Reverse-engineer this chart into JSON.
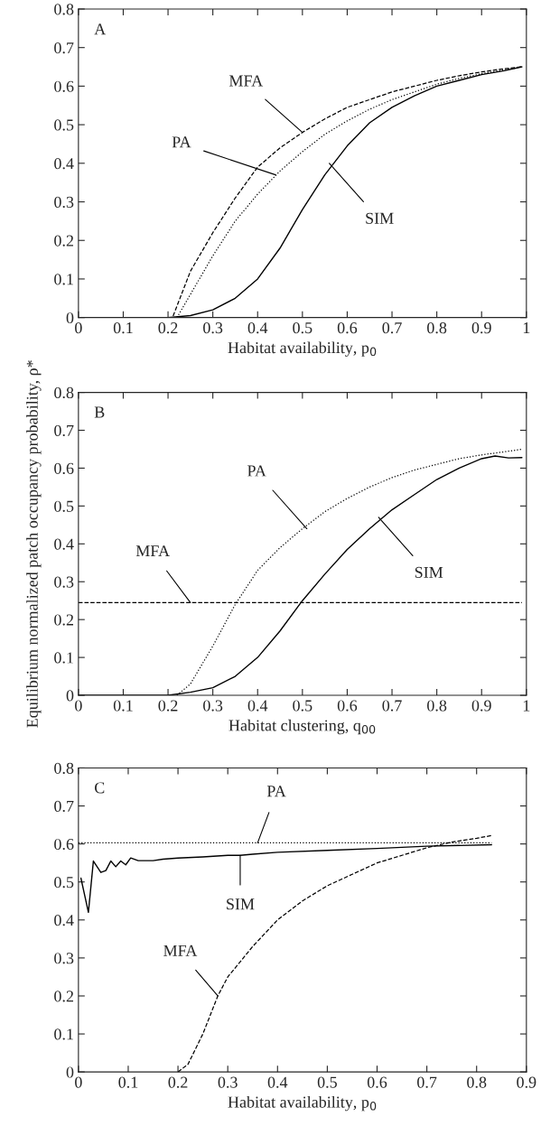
{
  "chart_data": [
    {
      "type": "line",
      "xlabel": "Habitat availability, p$_{0}$",
      "xlim": [
        0,
        1
      ],
      "ylim": [
        0,
        0.8
      ],
      "xticks": [
        0,
        0.1,
        0.2,
        0.3,
        0.4,
        0.5,
        0.6,
        0.7,
        0.8,
        0.9,
        1
      ],
      "yticks": [
        0,
        0.1,
        0.2,
        0.3,
        0.4,
        0.5,
        0.6,
        0.7,
        0.8
      ],
      "grid": false,
      "legend": false,
      "annotations": [
        "A",
        {
          "text": "MFA",
          "x": 0.5,
          "y": 0.48
        },
        {
          "text": "PA",
          "x": 0.44,
          "y": 0.37
        },
        {
          "text": "SIM",
          "x": 0.56,
          "y": 0.4
        }
      ],
      "series": [
        {
          "color": "#000000",
          "line_style": "dashed",
          "x": [
            0,
            0.1,
            0.2,
            0.21,
            0.25,
            0.3,
            0.35,
            0.4,
            0.45,
            0.5,
            0.55,
            0.6,
            0.65,
            0.7,
            0.75,
            0.8,
            0.85,
            0.9,
            0.95,
            0.99
          ],
          "values": [
            0,
            0,
            0,
            0,
            0.12,
            0.22,
            0.31,
            0.39,
            0.44,
            0.48,
            0.515,
            0.545,
            0.565,
            0.585,
            0.6,
            0.615,
            0.627,
            0.637,
            0.645,
            0.65
          ]
        },
        {
          "color": "#000000",
          "line_style": "dotted",
          "x": [
            0.22,
            0.25,
            0.3,
            0.35,
            0.4,
            0.45,
            0.5,
            0.55,
            0.6,
            0.65,
            0.7,
            0.75,
            0.8,
            0.85,
            0.9,
            0.95,
            0.99
          ],
          "values": [
            0,
            0.06,
            0.16,
            0.25,
            0.32,
            0.38,
            0.43,
            0.475,
            0.51,
            0.54,
            0.565,
            0.585,
            0.605,
            0.62,
            0.632,
            0.642,
            0.65
          ]
        },
        {
          "color": "#000000",
          "line_style": "solid",
          "x": [
            0,
            0.1,
            0.2,
            0.25,
            0.3,
            0.35,
            0.4,
            0.45,
            0.5,
            0.55,
            0.6,
            0.65,
            0.7,
            0.75,
            0.8,
            0.85,
            0.9,
            0.95,
            0.99
          ],
          "values": [
            0,
            0,
            0,
            0.005,
            0.02,
            0.05,
            0.1,
            0.18,
            0.28,
            0.37,
            0.445,
            0.505,
            0.545,
            0.575,
            0.6,
            0.615,
            0.63,
            0.64,
            0.65
          ]
        }
      ]
    },
    {
      "type": "line",
      "xlabel": "Habitat clustering, q$_{00}$",
      "ylabel": "Equilibrium normalized patch occupancy probability, ρ*",
      "xlim": [
        0,
        1
      ],
      "ylim": [
        0,
        0.8
      ],
      "xticks": [
        0,
        0.1,
        0.2,
        0.3,
        0.4,
        0.5,
        0.6,
        0.7,
        0.8,
        0.9,
        1
      ],
      "yticks": [
        0,
        0.1,
        0.2,
        0.3,
        0.4,
        0.5,
        0.6,
        0.7,
        0.8
      ],
      "grid": false,
      "legend": false,
      "annotations": [
        "B",
        {
          "text": "PA",
          "x": 0.51,
          "y": 0.44
        },
        {
          "text": "MFA",
          "x": 0.25,
          "y": 0.245
        },
        {
          "text": "SIM",
          "x": 0.67,
          "y": 0.47
        }
      ],
      "series": [
        {
          "color": "#000000",
          "line_style": "dashed",
          "x": [
            0,
            0.99
          ],
          "values": [
            0.245,
            0.245
          ]
        },
        {
          "color": "#000000",
          "line_style": "dotted",
          "x": [
            0.22,
            0.25,
            0.3,
            0.35,
            0.4,
            0.45,
            0.5,
            0.55,
            0.6,
            0.65,
            0.7,
            0.75,
            0.8,
            0.85,
            0.9,
            0.95,
            0.99
          ],
          "values": [
            0,
            0.03,
            0.13,
            0.24,
            0.33,
            0.39,
            0.44,
            0.485,
            0.52,
            0.55,
            0.575,
            0.595,
            0.61,
            0.625,
            0.635,
            0.643,
            0.65
          ]
        },
        {
          "color": "#000000",
          "line_style": "solid",
          "x": [
            0,
            0.1,
            0.2,
            0.25,
            0.3,
            0.35,
            0.4,
            0.45,
            0.5,
            0.55,
            0.6,
            0.65,
            0.7,
            0.75,
            0.8,
            0.85,
            0.9,
            0.93,
            0.96,
            0.99
          ],
          "values": [
            0,
            0,
            0,
            0.008,
            0.02,
            0.05,
            0.1,
            0.17,
            0.25,
            0.32,
            0.385,
            0.44,
            0.49,
            0.53,
            0.57,
            0.6,
            0.625,
            0.632,
            0.627,
            0.628
          ]
        }
      ]
    },
    {
      "type": "line",
      "xlabel": "Habitat availability, p$_{0}$",
      "xlim": [
        0,
        0.9
      ],
      "ylim": [
        0,
        0.8
      ],
      "xticks": [
        0,
        0.1,
        0.2,
        0.3,
        0.4,
        0.5,
        0.6,
        0.7,
        0.8,
        0.9
      ],
      "yticks": [
        0,
        0.1,
        0.2,
        0.3,
        0.4,
        0.5,
        0.6,
        0.7,
        0.8
      ],
      "grid": false,
      "legend": false,
      "annotations": [
        "C",
        {
          "text": "PA",
          "x": 0.36,
          "y": 0.603
        },
        {
          "text": "SIM",
          "x": 0.325,
          "y": 0.57
        },
        {
          "text": "MFA",
          "x": 0.28,
          "y": 0.2
        }
      ],
      "series": [
        {
          "color": "#000000",
          "line_style": "dotted",
          "x": [
            0,
            0.83
          ],
          "values": [
            0.603,
            0.603
          ]
        },
        {
          "color": "#000000",
          "line_style": "solid",
          "x": [
            0.005,
            0.02,
            0.03,
            0.045,
            0.055,
            0.065,
            0.075,
            0.085,
            0.095,
            0.105,
            0.12,
            0.15,
            0.17,
            0.2,
            0.25,
            0.3,
            0.325,
            0.35,
            0.4,
            0.5,
            0.6,
            0.7,
            0.83
          ],
          "values": [
            0.51,
            0.42,
            0.555,
            0.525,
            0.53,
            0.555,
            0.54,
            0.555,
            0.545,
            0.563,
            0.556,
            0.556,
            0.56,
            0.563,
            0.566,
            0.57,
            0.57,
            0.573,
            0.578,
            0.583,
            0.588,
            0.594,
            0.598
          ]
        },
        {
          "color": "#000000",
          "line_style": "dashed",
          "x": [
            0.2,
            0.22,
            0.25,
            0.28,
            0.3,
            0.35,
            0.4,
            0.45,
            0.5,
            0.55,
            0.6,
            0.65,
            0.7,
            0.75,
            0.8,
            0.83
          ],
          "values": [
            0,
            0.02,
            0.1,
            0.2,
            0.25,
            0.33,
            0.4,
            0.45,
            0.49,
            0.52,
            0.55,
            0.57,
            0.59,
            0.605,
            0.615,
            0.622
          ]
        }
      ]
    }
  ]
}
